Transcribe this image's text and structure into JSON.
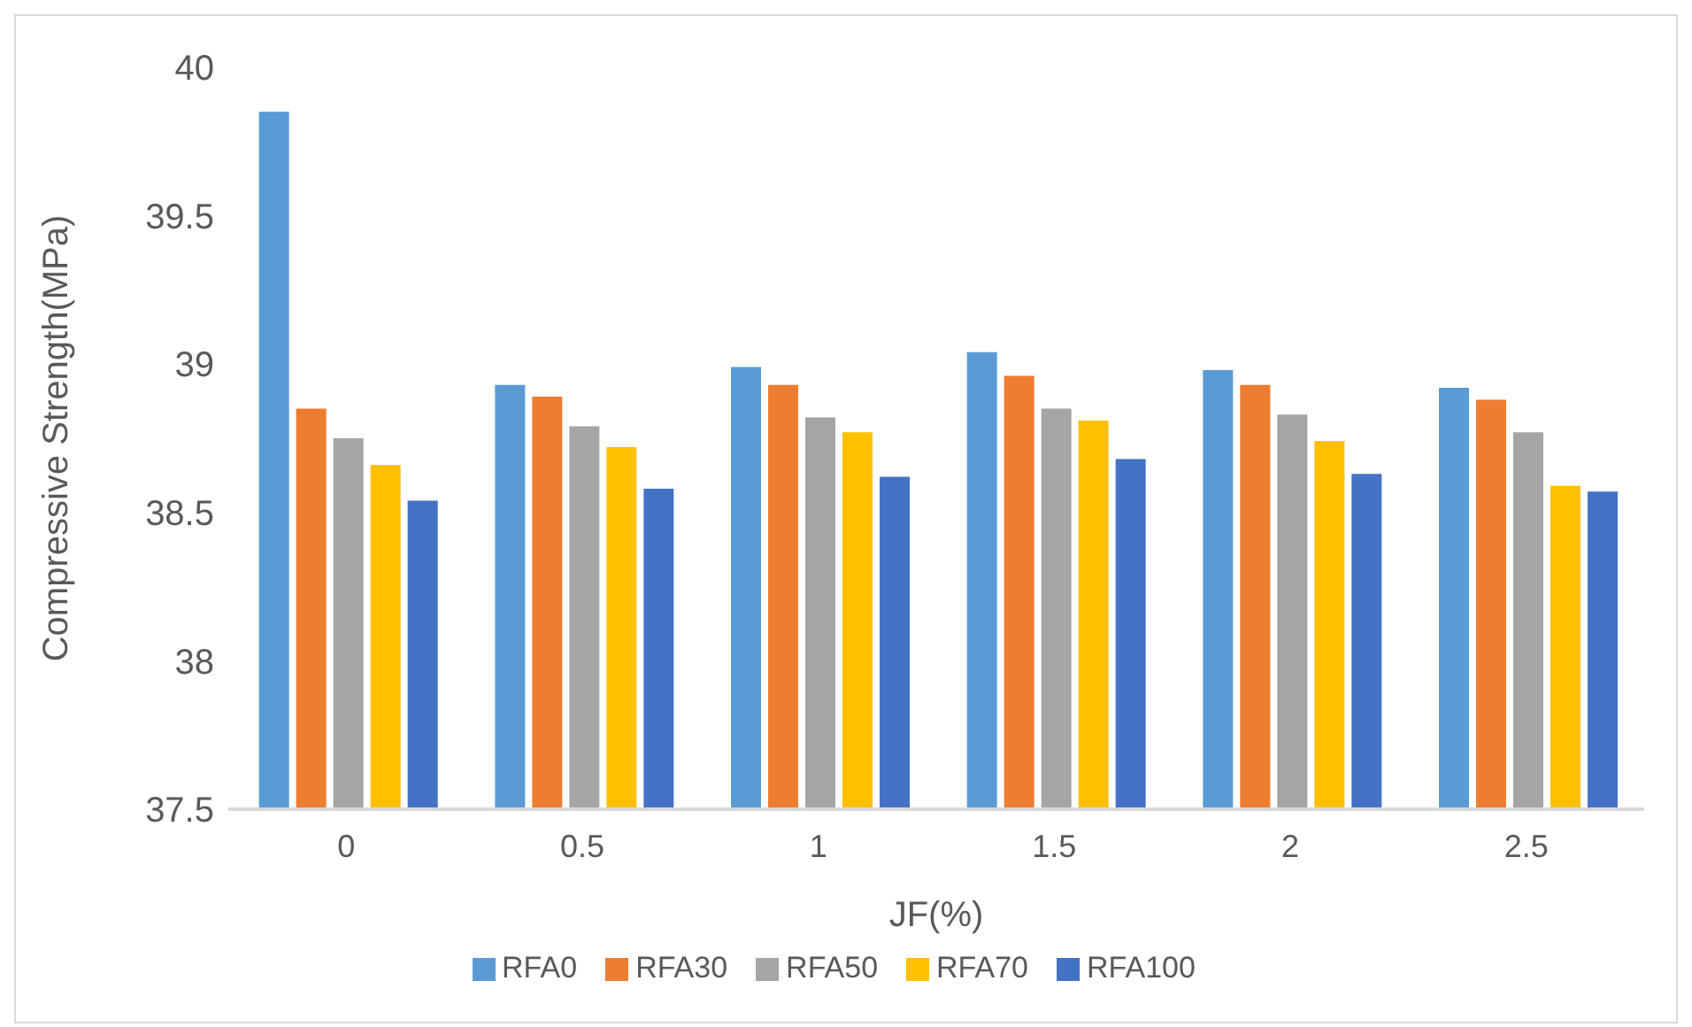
{
  "chart_data": {
    "type": "bar",
    "xlabel": "JF(%)",
    "ylabel": "Compressive Strength(MPa)",
    "categories": [
      "0",
      "0.5",
      "1",
      "1.5",
      "2",
      "2.5"
    ],
    "series": [
      {
        "name": "RFA0",
        "color": "#5b9bd5",
        "values": [
          39.85,
          38.93,
          38.99,
          39.04,
          38.98,
          38.92
        ]
      },
      {
        "name": "RFA30",
        "color": "#ed7d31",
        "values": [
          38.85,
          38.89,
          38.93,
          38.96,
          38.93,
          38.88
        ]
      },
      {
        "name": "RFA50",
        "color": "#a5a5a5",
        "values": [
          38.75,
          38.79,
          38.82,
          38.85,
          38.83,
          38.77
        ]
      },
      {
        "name": "RFA70",
        "color": "#ffc000",
        "values": [
          38.66,
          38.72,
          38.77,
          38.81,
          38.74,
          38.59
        ]
      },
      {
        "name": "RFA100",
        "color": "#4472c4",
        "values": [
          38.54,
          38.58,
          38.62,
          38.68,
          38.63,
          38.57
        ]
      }
    ],
    "ylim": [
      37.5,
      40
    ],
    "yticks": [
      37.5,
      38,
      38.5,
      39,
      39.5,
      40
    ],
    "grid": false,
    "legend": "bottom"
  }
}
